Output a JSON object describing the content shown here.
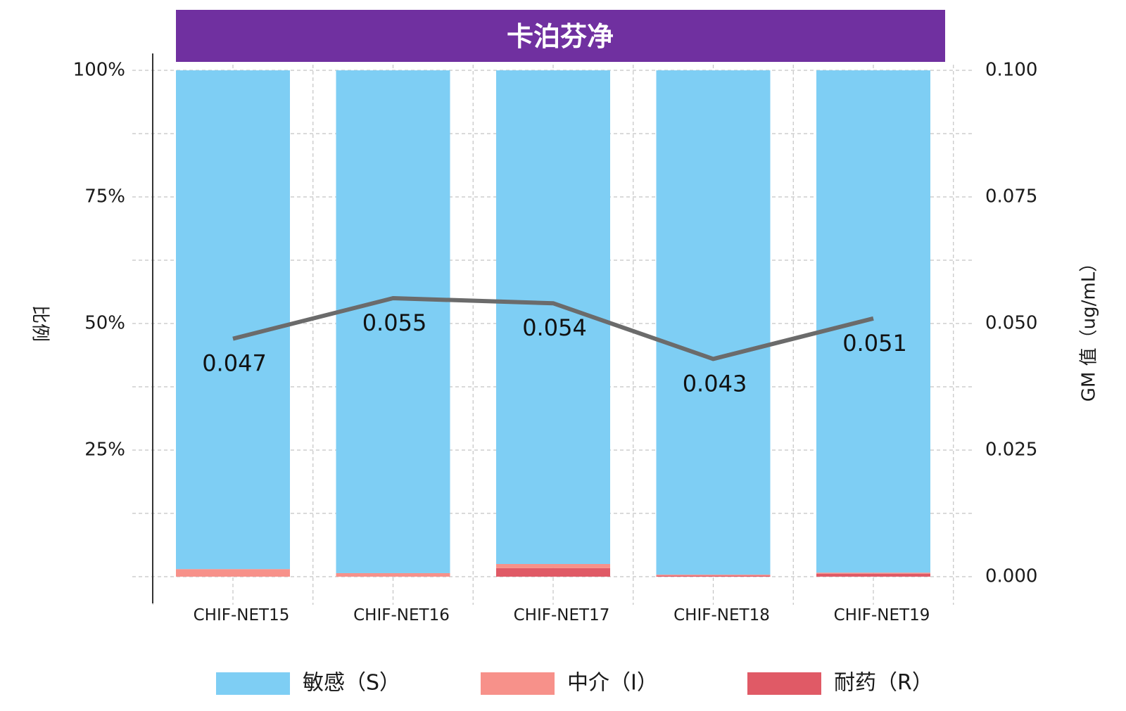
{
  "chart_data": {
    "type": "bar",
    "title": "卡泊芬净",
    "categories": [
      "CHIF-NET15",
      "CHIF-NET16",
      "CHIF-NET17",
      "CHIF-NET18",
      "CHIF-NET19"
    ],
    "series": [
      {
        "name": "敏感（S）",
        "values": [
          98.5,
          99.3,
          97.5,
          99.6,
          99.2
        ],
        "color": "#7ecef4"
      },
      {
        "name": "中介（I）",
        "values": [
          1.5,
          0.7,
          0.8,
          0.2,
          0.2
        ],
        "color": "#f7918a"
      },
      {
        "name": "耐药（R）",
        "values": [
          0.0,
          0.0,
          1.7,
          0.2,
          0.6
        ],
        "color": "#e05a66"
      }
    ],
    "line_series": {
      "values": [
        0.047,
        0.055,
        0.054,
        0.043,
        0.051
      ],
      "labels": [
        "0.047",
        "0.055",
        "0.054",
        "0.043",
        "0.051"
      ],
      "color": "#6b6b6b",
      "label_position": [
        "below",
        "below",
        "below",
        "below",
        "below"
      ]
    },
    "ylabel_left": "比例",
    "ylabel_right": "GM 值（ug/mL）",
    "ylim_left": [
      0,
      100
    ],
    "ylim_right": [
      0,
      0.1
    ],
    "yticks_left": [
      "25%",
      "50%",
      "75%",
      "100%"
    ],
    "yticks_left_values": [
      25,
      50,
      75,
      100
    ],
    "yticks_right": [
      "0.000",
      "0.025",
      "0.050",
      "0.075",
      "0.100"
    ],
    "yticks_right_values": [
      0,
      0.025,
      0.05,
      0.075,
      0.1
    ],
    "grid": true,
    "legend_position": "bottom",
    "title_bar_color": "#7030a0"
  }
}
